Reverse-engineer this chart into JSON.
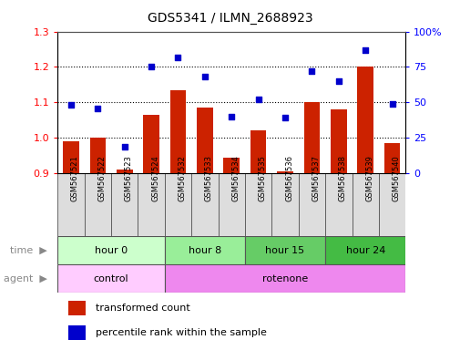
{
  "title": "GDS5341 / ILMN_2688923",
  "samples": [
    "GSM567521",
    "GSM567522",
    "GSM567523",
    "GSM567524",
    "GSM567532",
    "GSM567533",
    "GSM567534",
    "GSM567535",
    "GSM567536",
    "GSM567537",
    "GSM567538",
    "GSM567539",
    "GSM567540"
  ],
  "bar_values": [
    0.99,
    1.0,
    0.91,
    1.065,
    1.135,
    1.085,
    0.945,
    1.02,
    0.905,
    1.1,
    1.08,
    1.2,
    0.985
  ],
  "scatter_values": [
    48,
    46,
    19,
    75,
    82,
    68,
    40,
    52,
    39,
    72,
    65,
    87,
    49
  ],
  "bar_bottom": 0.9,
  "ylim_left": [
    0.9,
    1.3
  ],
  "ylim_right": [
    0,
    100
  ],
  "yticks_left": [
    0.9,
    1.0,
    1.1,
    1.2,
    1.3
  ],
  "yticks_right": [
    0,
    25,
    50,
    75,
    100
  ],
  "ytick_right_labels": [
    "0",
    "25",
    "50",
    "75",
    "100%"
  ],
  "bar_color": "#cc2200",
  "scatter_color": "#0000cc",
  "time_groups": [
    {
      "label": "hour 0",
      "start": 0,
      "end": 4,
      "color": "#ccffcc"
    },
    {
      "label": "hour 8",
      "start": 4,
      "end": 7,
      "color": "#99ee99"
    },
    {
      "label": "hour 15",
      "start": 7,
      "end": 10,
      "color": "#66cc66"
    },
    {
      "label": "hour 24",
      "start": 10,
      "end": 13,
      "color": "#44bb44"
    }
  ],
  "agent_groups": [
    {
      "label": "control",
      "start": 0,
      "end": 4,
      "color": "#ffccff"
    },
    {
      "label": "rotenone",
      "start": 4,
      "end": 13,
      "color": "#ee88ee"
    }
  ],
  "legend_bar_label": "transformed count",
  "legend_scatter_label": "percentile rank within the sample",
  "bg_color": "#ffffff",
  "sample_cell_color": "#dddddd",
  "border_color": "#555555"
}
